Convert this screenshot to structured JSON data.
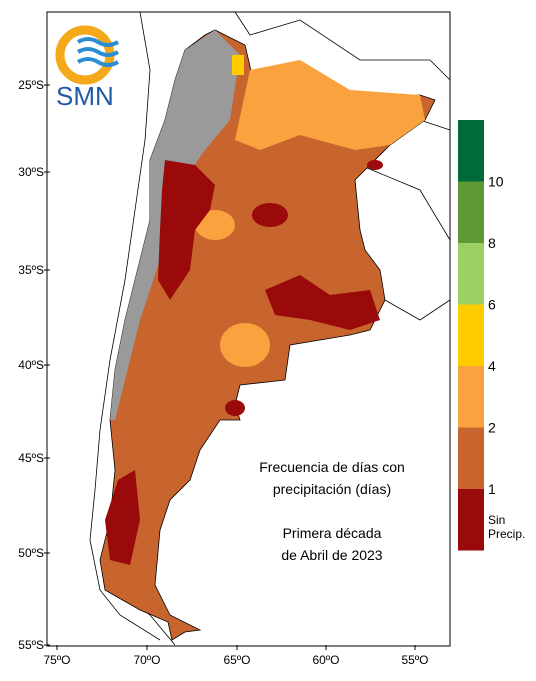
{
  "logo": {
    "text": "SMN"
  },
  "annotation": {
    "lines": [
      "Frecuencia de días con",
      "precipitación (días)",
      "",
      "Primera década",
      "de Abril de 2023"
    ]
  },
  "latitude_labels": [
    "25ºS",
    "30ºS",
    "35ºS",
    "40ºS",
    "45ºS",
    "50ºS",
    "55ºS"
  ],
  "longitude_labels": [
    "75ºO",
    "70ºO",
    "65ºO",
    "60ºO",
    "55ºO"
  ],
  "legend": {
    "colors": [
      "#006b3a",
      "#5e9a34",
      "#9ccf64",
      "#ffcc00",
      "#f9a23e",
      "#c8652f",
      "#9a0a0a"
    ],
    "labels": [
      "10",
      "8",
      "6",
      "4",
      "2",
      "1"
    ],
    "no_precip_label": [
      "Sin",
      "Precip."
    ]
  }
}
